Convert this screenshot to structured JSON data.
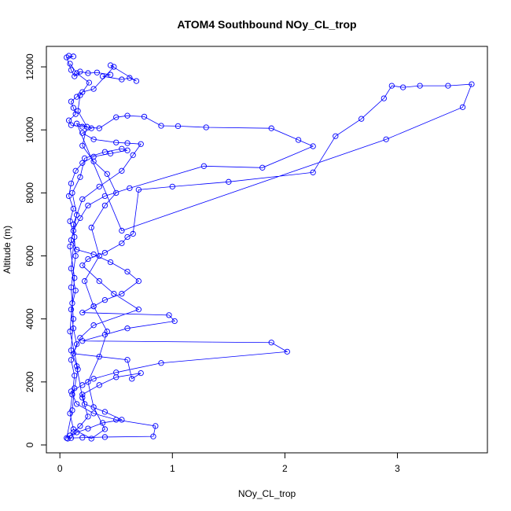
{
  "chart_data": {
    "type": "scatter",
    "title": "ATOM4 Southbound NOy_CL_trop",
    "xlabel": "NOy_CL_trop",
    "ylabel": "Altitude (m)",
    "xlim": [
      -0.12,
      3.8
    ],
    "ylim": [
      -250,
      12650
    ],
    "xticks": [
      0,
      1,
      2,
      3
    ],
    "yticks": [
      0,
      2000,
      4000,
      6000,
      8000,
      10000,
      12000
    ],
    "grid": false,
    "legend": "none",
    "connected": true,
    "series": [
      {
        "color": "#0000ff",
        "points": [
          [
            0.08,
            12350
          ],
          [
            0.12,
            12330
          ],
          [
            0.06,
            12300
          ],
          [
            0.1,
            11900
          ],
          [
            0.13,
            11700
          ],
          [
            0.18,
            11850
          ],
          [
            0.25,
            11800
          ],
          [
            0.33,
            11820
          ],
          [
            0.45,
            11750
          ],
          [
            0.38,
            11700
          ],
          [
            0.55,
            11600
          ],
          [
            0.62,
            11650
          ],
          [
            0.68,
            11550
          ],
          [
            0.45,
            12050
          ],
          [
            0.48,
            12000
          ],
          [
            0.3,
            11300
          ],
          [
            0.2,
            11200
          ],
          [
            0.15,
            11050
          ],
          [
            0.1,
            10900
          ],
          [
            0.12,
            10700
          ],
          [
            0.14,
            10500
          ],
          [
            0.08,
            10300
          ],
          [
            0.1,
            10150
          ],
          [
            0.2,
            10100
          ],
          [
            0.35,
            10050
          ],
          [
            0.5,
            10400
          ],
          [
            0.6,
            10450
          ],
          [
            0.75,
            10420
          ],
          [
            0.9,
            10130
          ],
          [
            1.05,
            10120
          ],
          [
            1.3,
            10080
          ],
          [
            1.88,
            10050
          ],
          [
            2.12,
            9680
          ],
          [
            2.25,
            9480
          ],
          [
            1.8,
            8800
          ],
          [
            1.28,
            8850
          ],
          [
            0.62,
            8150
          ],
          [
            0.4,
            7900
          ],
          [
            0.25,
            7600
          ],
          [
            0.18,
            7200
          ],
          [
            0.12,
            6800
          ],
          [
            0.1,
            6500
          ],
          [
            0.15,
            6200
          ],
          [
            0.3,
            6050
          ],
          [
            0.45,
            5800
          ],
          [
            0.6,
            5500
          ],
          [
            0.7,
            5200
          ],
          [
            0.55,
            4800
          ],
          [
            0.4,
            4600
          ],
          [
            0.3,
            4400
          ],
          [
            0.2,
            4200
          ],
          [
            0.97,
            4120
          ],
          [
            1.02,
            3930
          ],
          [
            0.6,
            3700
          ],
          [
            0.4,
            3500
          ],
          [
            0.2,
            3300
          ],
          [
            1.88,
            3250
          ],
          [
            2.02,
            2960
          ],
          [
            0.9,
            2600
          ],
          [
            0.5,
            2300
          ],
          [
            0.3,
            2100
          ],
          [
            0.2,
            1900
          ],
          [
            0.1,
            1700
          ],
          [
            0.15,
            1300
          ],
          [
            0.3,
            1000
          ],
          [
            0.5,
            800
          ],
          [
            0.85,
            600
          ],
          [
            0.83,
            270
          ],
          [
            0.4,
            250
          ],
          [
            0.2,
            230
          ],
          [
            0.1,
            220
          ],
          [
            0.07,
            200
          ],
          [
            0.12,
            400
          ],
          [
            0.18,
            600
          ],
          [
            0.25,
            900
          ],
          [
            0.2,
            1500
          ],
          [
            0.15,
            2500
          ],
          [
            0.1,
            3000
          ],
          [
            0.12,
            4000
          ],
          [
            0.1,
            5000
          ],
          [
            0.14,
            6000
          ],
          [
            0.12,
            7000
          ],
          [
            0.2,
            7800
          ],
          [
            0.35,
            8200
          ],
          [
            0.55,
            8700
          ],
          [
            0.65,
            9200
          ],
          [
            0.72,
            9550
          ],
          [
            0.6,
            9580
          ],
          [
            0.5,
            9600
          ],
          [
            0.3,
            9700
          ],
          [
            0.2,
            9900
          ],
          [
            0.28,
            10050
          ],
          [
            0.15,
            10200
          ],
          [
            0.55,
            6800
          ],
          [
            2.9,
            9700
          ],
          [
            3.58,
            10720
          ],
          [
            3.66,
            11450
          ],
          [
            3.45,
            11400
          ],
          [
            3.2,
            11400
          ],
          [
            3.05,
            11350
          ],
          [
            2.95,
            11400
          ],
          [
            2.88,
            11000
          ],
          [
            2.68,
            10350
          ],
          [
            2.45,
            9800
          ],
          [
            2.25,
            8650
          ],
          [
            1.5,
            8350
          ],
          [
            1.0,
            8200
          ],
          [
            0.7,
            8100
          ],
          [
            0.65,
            6700
          ],
          [
            0.6,
            6600
          ],
          [
            0.55,
            6400
          ],
          [
            0.4,
            6100
          ],
          [
            0.25,
            5900
          ],
          [
            0.2,
            5700
          ],
          [
            0.35,
            5200
          ],
          [
            0.48,
            4800
          ],
          [
            0.7,
            4300
          ],
          [
            0.3,
            3800
          ],
          [
            0.18,
            3400
          ],
          [
            0.12,
            2900
          ],
          [
            0.6,
            2700
          ],
          [
            0.64,
            2100
          ],
          [
            0.72,
            2280
          ],
          [
            0.5,
            2150
          ],
          [
            0.35,
            1900
          ],
          [
            0.2,
            1600
          ],
          [
            0.22,
            1300
          ],
          [
            0.4,
            1050
          ],
          [
            0.55,
            800
          ],
          [
            0.38,
            700
          ],
          [
            0.25,
            520
          ],
          [
            0.15,
            400
          ],
          [
            0.09,
            300
          ],
          [
            0.06,
            220
          ],
          [
            0.11,
            1100
          ],
          [
            0.13,
            1800
          ],
          [
            0.16,
            2400
          ],
          [
            0.09,
            3600
          ],
          [
            0.11,
            4500
          ],
          [
            0.13,
            5300
          ],
          [
            0.09,
            6300
          ],
          [
            0.15,
            7300
          ],
          [
            0.11,
            8000
          ],
          [
            0.18,
            8500
          ],
          [
            0.22,
            9100
          ],
          [
            0.4,
            9300
          ],
          [
            0.55,
            9400
          ],
          [
            0.6,
            9350
          ],
          [
            0.45,
            9250
          ],
          [
            0.3,
            9150
          ],
          [
            0.2,
            8950
          ],
          [
            0.14,
            8700
          ],
          [
            0.1,
            8300
          ],
          [
            0.08,
            7900
          ],
          [
            0.12,
            7500
          ],
          [
            0.09,
            7100
          ],
          [
            0.13,
            6600
          ],
          [
            0.1,
            5600
          ],
          [
            0.14,
            4900
          ],
          [
            0.1,
            4300
          ],
          [
            0.12,
            3700
          ],
          [
            0.15,
            3200
          ],
          [
            0.1,
            2700
          ],
          [
            0.13,
            2200
          ],
          [
            0.11,
            1600
          ],
          [
            0.09,
            1000
          ],
          [
            0.12,
            500
          ],
          [
            0.28,
            200
          ],
          [
            0.4,
            500
          ],
          [
            0.3,
            1200
          ],
          [
            0.25,
            2000
          ],
          [
            0.35,
            2800
          ],
          [
            0.42,
            3600
          ],
          [
            0.3,
            4400
          ],
          [
            0.22,
            5200
          ],
          [
            0.35,
            6000
          ],
          [
            0.28,
            6900
          ],
          [
            0.4,
            7600
          ],
          [
            0.5,
            8000
          ],
          [
            0.42,
            8600
          ],
          [
            0.3,
            9000
          ],
          [
            0.2,
            9500
          ],
          [
            0.24,
            10100
          ],
          [
            0.16,
            10600
          ],
          [
            0.18,
            11100
          ],
          [
            0.26,
            11500
          ],
          [
            0.15,
            11800
          ],
          [
            0.09,
            12100
          ]
        ]
      }
    ]
  }
}
